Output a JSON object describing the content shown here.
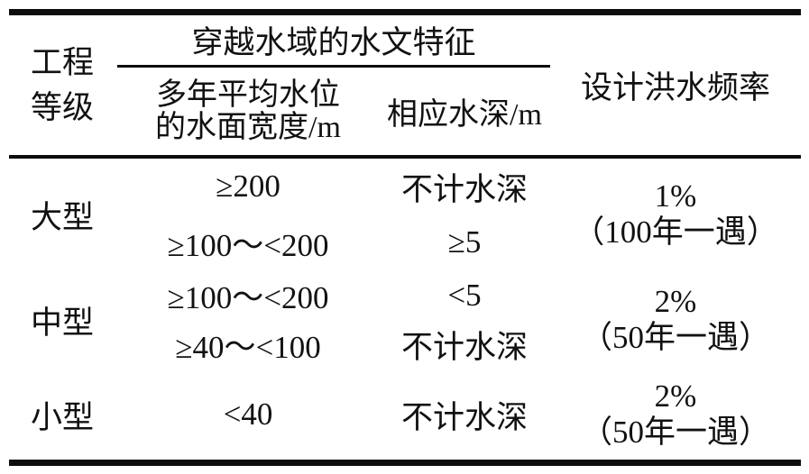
{
  "table": {
    "header": {
      "grade_line1": "工程",
      "grade_line2": "等级",
      "span_title": "穿越水域的水文特征",
      "width_line1": "多年平均水位",
      "width_line2": "的水面宽度/m",
      "depth": "相应水深/m",
      "freq": "设计洪水频率"
    },
    "groups": [
      {
        "grade": "大型",
        "rows": [
          {
            "width": "≥200",
            "depth": "不计水深"
          },
          {
            "width": "≥100～<200",
            "depth": "≥5"
          }
        ],
        "freq_pct": "1%",
        "freq_note": "（100年一遇）"
      },
      {
        "grade": "中型",
        "rows": [
          {
            "width": "≥100～<200",
            "depth": "<5"
          },
          {
            "width": "≥40～<100",
            "depth": "不计水深"
          }
        ],
        "freq_pct": "2%",
        "freq_note": "（50年一遇）"
      },
      {
        "grade": "小型",
        "rows": [
          {
            "width": "<40",
            "depth": "不计水深"
          }
        ],
        "freq_pct": "2%",
        "freq_note": "（50年一遇）"
      }
    ]
  }
}
